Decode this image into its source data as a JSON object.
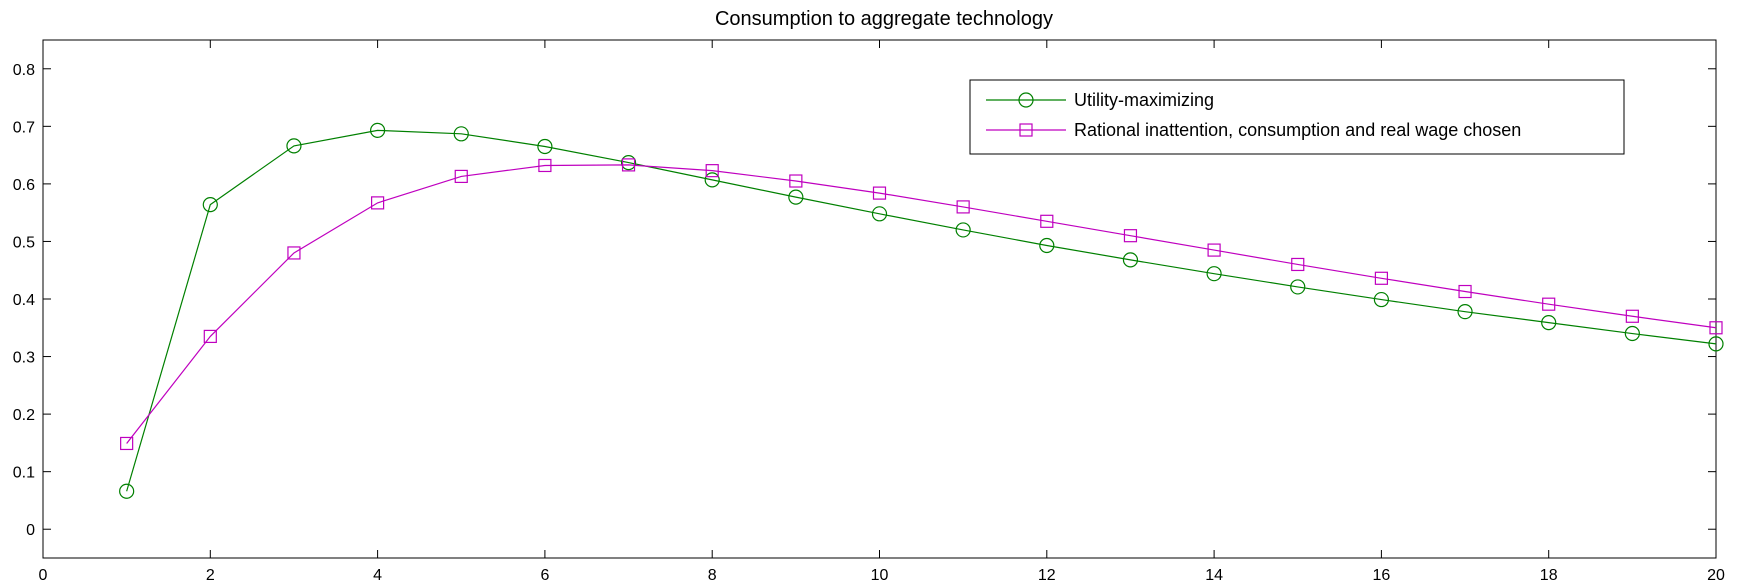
{
  "chart_data": {
    "type": "line",
    "title": "Consumption to aggregate technology",
    "xlabel": "",
    "ylabel": "",
    "xlim": [
      0,
      20
    ],
    "ylim": [
      -0.05,
      0.85
    ],
    "x_ticks": [
      0,
      2,
      4,
      6,
      8,
      10,
      12,
      14,
      16,
      18,
      20
    ],
    "y_ticks": [
      0,
      0.1,
      0.2,
      0.3,
      0.4,
      0.5,
      0.6,
      0.7,
      0.8
    ],
    "grid": false,
    "legend_position": "top-right",
    "x": [
      1,
      2,
      3,
      4,
      5,
      6,
      7,
      8,
      9,
      10,
      11,
      12,
      13,
      14,
      15,
      16,
      17,
      18,
      19,
      20
    ],
    "series": [
      {
        "name": "Utility-maximizing",
        "color": "#008000",
        "marker": "circle",
        "values": [
          0.066,
          0.564,
          0.666,
          0.693,
          0.687,
          0.665,
          0.637,
          0.607,
          0.577,
          0.548,
          0.52,
          0.493,
          0.468,
          0.444,
          0.421,
          0.399,
          0.378,
          0.359,
          0.34,
          0.322
        ]
      },
      {
        "name": "Rational inattention, consumption and real wage chosen",
        "color": "#BF00BF",
        "marker": "square",
        "values": [
          0.149,
          0.335,
          0.48,
          0.567,
          0.613,
          0.632,
          0.633,
          0.623,
          0.605,
          0.584,
          0.56,
          0.535,
          0.51,
          0.485,
          0.46,
          0.436,
          0.413,
          0.391,
          0.37,
          0.35
        ]
      }
    ]
  }
}
